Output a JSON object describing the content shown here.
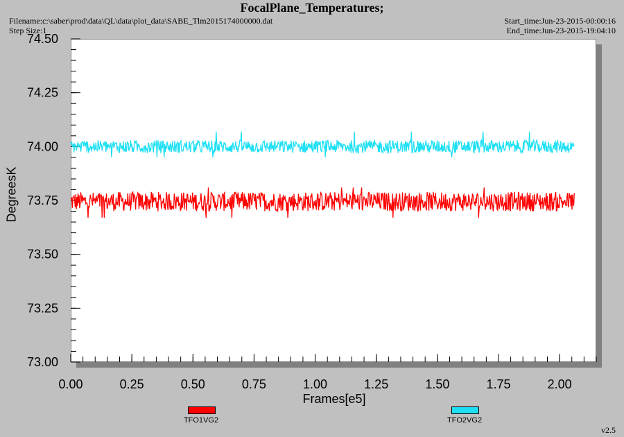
{
  "header": {
    "title": "FocalPlane_Temperatures;",
    "filename": "Filename:c:\\saber\\prod\\data\\QL\\data\\plot_data\\SABE_Tlm2015174000000.dat",
    "step_size": "Step Size:1",
    "start_time": "Start_time:Jun-23-2015-00:00:16",
    "end_time": "End_time:Jun-23-2015-19:04:10"
  },
  "version": "v2.5",
  "colors": {
    "series1": "#ff0000",
    "series2": "#1ee0f4",
    "plot_bg": "#ffffff",
    "page_bg": "#c0c0c0"
  },
  "chart_data": {
    "type": "line",
    "title": "FocalPlane_Temperatures;",
    "xlabel": "Frames[e5]",
    "ylabel": "DegreesK",
    "xlim": [
      0.0,
      2.15
    ],
    "ylim": [
      73.0,
      74.5
    ],
    "x_ticks": [
      "0.00",
      "0.25",
      "0.50",
      "0.75",
      "1.00",
      "1.25",
      "1.50",
      "1.75",
      "2.00"
    ],
    "y_ticks": [
      "73.00",
      "73.25",
      "73.50",
      "73.75",
      "74.00",
      "74.25",
      "74.50"
    ],
    "legend_position": "bottom",
    "series": [
      {
        "name": "TFO1VG2",
        "x_range": [
          0.0,
          2.06
        ],
        "mean": 73.75,
        "noise_band": [
          73.7,
          73.79
        ],
        "extremes": [
          73.67,
          73.81
        ]
      },
      {
        "name": "TFO2VG2",
        "x_range": [
          0.0,
          2.06
        ],
        "mean": 74.0,
        "noise_band": [
          73.97,
          74.03
        ],
        "extremes": [
          73.95,
          74.07
        ]
      }
    ],
    "grid": false
  }
}
